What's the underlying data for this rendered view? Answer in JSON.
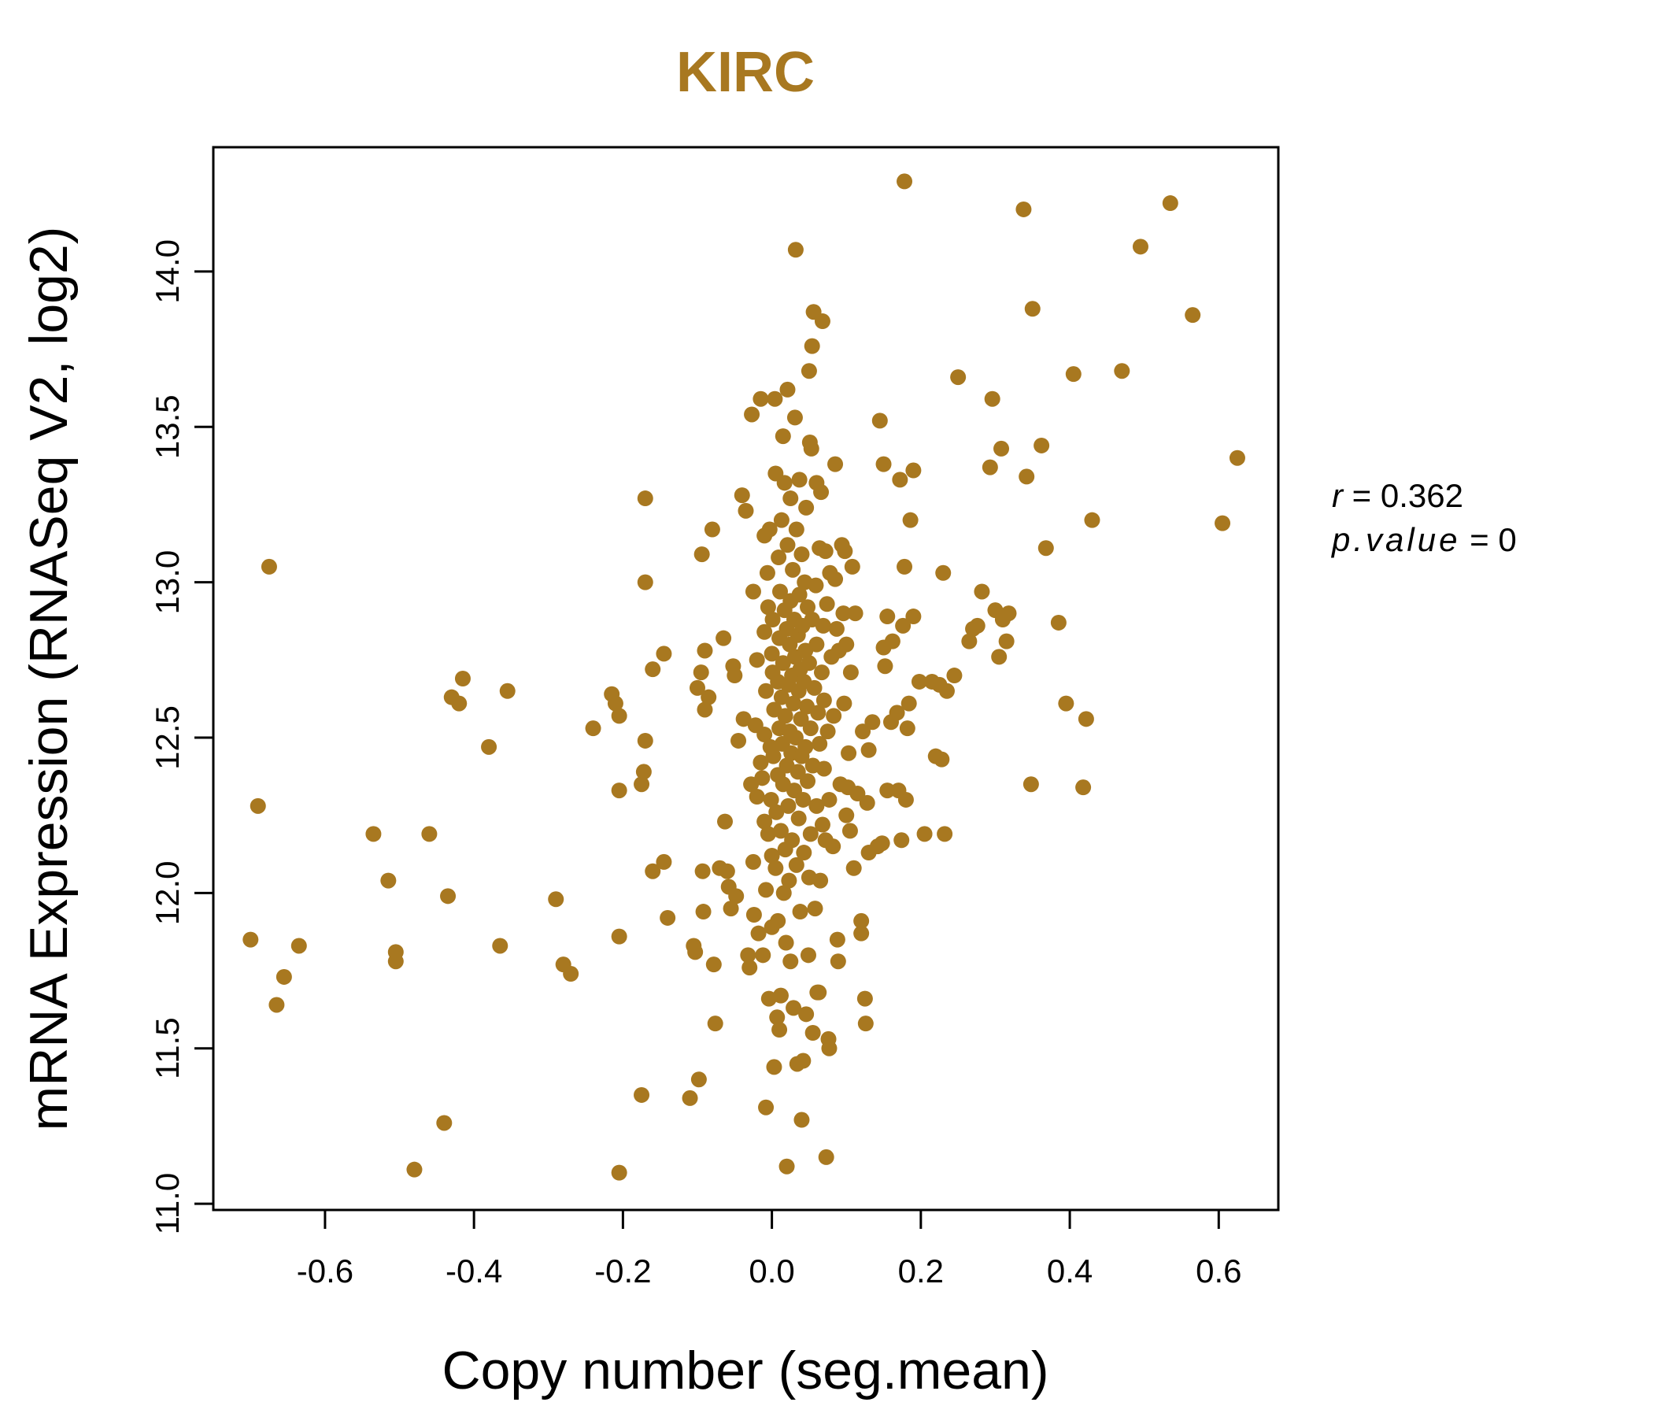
{
  "chart_data": {
    "type": "scatter",
    "title": "KIRC",
    "xlabel": "Copy number (seg.mean)",
    "ylabel": "mRNA Expression (RNASeq V2, log2)",
    "xlim": [
      -0.75,
      0.68
    ],
    "ylim": [
      10.98,
      14.4
    ],
    "x_ticks": [
      -0.6,
      -0.4,
      -0.2,
      0.0,
      0.2,
      0.4,
      0.6
    ],
    "x_tick_labels": [
      "-0.6",
      "-0.4",
      "-0.2",
      "0.0",
      "0.2",
      "0.4",
      "0.6"
    ],
    "y_ticks": [
      11.0,
      11.5,
      12.0,
      12.5,
      13.0,
      13.5,
      14.0
    ],
    "y_tick_labels": [
      "11.0",
      "11.5",
      "12.0",
      "12.5",
      "13.0",
      "13.5",
      "14.0"
    ],
    "color": "#A87820",
    "grid": false,
    "legend": "none",
    "annotations": {
      "r_label": "r",
      "r_value": "0.362",
      "p_label": "p.value",
      "p_value": "0"
    },
    "points": [
      [
        -0.7,
        11.85
      ],
      [
        -0.69,
        12.28
      ],
      [
        -0.675,
        13.05
      ],
      [
        -0.665,
        11.64
      ],
      [
        -0.655,
        11.73
      ],
      [
        -0.635,
        11.83
      ],
      [
        -0.535,
        12.19
      ],
      [
        -0.515,
        12.04
      ],
      [
        -0.505,
        11.81
      ],
      [
        -0.505,
        11.78
      ],
      [
        -0.48,
        11.11
      ],
      [
        -0.46,
        12.19
      ],
      [
        -0.44,
        11.26
      ],
      [
        -0.435,
        11.99
      ],
      [
        -0.43,
        12.63
      ],
      [
        -0.42,
        12.61
      ],
      [
        -0.415,
        12.69
      ],
      [
        -0.38,
        12.47
      ],
      [
        -0.365,
        11.83
      ],
      [
        -0.355,
        12.65
      ],
      [
        -0.29,
        11.98
      ],
      [
        -0.28,
        11.77
      ],
      [
        -0.27,
        11.74
      ],
      [
        -0.24,
        12.53
      ],
      [
        -0.215,
        12.64
      ],
      [
        -0.21,
        12.61
      ],
      [
        -0.205,
        12.57
      ],
      [
        -0.205,
        12.33
      ],
      [
        -0.205,
        11.86
      ],
      [
        -0.205,
        11.1
      ],
      [
        -0.175,
        11.35
      ],
      [
        -0.175,
        12.35
      ],
      [
        -0.172,
        12.39
      ],
      [
        -0.17,
        12.49
      ],
      [
        -0.17,
        13.0
      ],
      [
        -0.17,
        13.27
      ],
      [
        -0.16,
        12.72
      ],
      [
        -0.16,
        12.07
      ],
      [
        -0.145,
        12.77
      ],
      [
        -0.145,
        12.1
      ],
      [
        -0.14,
        11.92
      ],
      [
        -0.11,
        11.34
      ],
      [
        -0.105,
        11.83
      ],
      [
        -0.103,
        11.81
      ],
      [
        -0.1,
        12.66
      ],
      [
        -0.098,
        11.4
      ],
      [
        -0.095,
        12.71
      ],
      [
        -0.094,
        13.09
      ],
      [
        -0.093,
        12.07
      ],
      [
        -0.092,
        11.94
      ],
      [
        -0.09,
        12.78
      ],
      [
        -0.09,
        12.59
      ],
      [
        -0.085,
        12.63
      ],
      [
        -0.08,
        13.17
      ],
      [
        -0.078,
        11.77
      ],
      [
        -0.076,
        11.58
      ],
      [
        -0.07,
        12.08
      ],
      [
        -0.065,
        12.82
      ],
      [
        -0.063,
        12.23
      ],
      [
        -0.06,
        12.07
      ],
      [
        -0.058,
        12.02
      ],
      [
        -0.055,
        11.95
      ],
      [
        -0.052,
        12.73
      ],
      [
        -0.05,
        12.7
      ],
      [
        -0.048,
        11.99
      ],
      [
        -0.045,
        12.49
      ],
      [
        -0.04,
        13.28
      ],
      [
        -0.038,
        12.56
      ],
      [
        -0.035,
        13.23
      ],
      [
        -0.032,
        11.8
      ],
      [
        -0.03,
        11.76
      ],
      [
        -0.028,
        12.35
      ],
      [
        -0.027,
        13.54
      ],
      [
        -0.025,
        12.97
      ],
      [
        -0.025,
        12.1
      ],
      [
        -0.024,
        11.93
      ],
      [
        -0.022,
        12.54
      ],
      [
        -0.02,
        12.75
      ],
      [
        -0.02,
        12.31
      ],
      [
        -0.018,
        11.87
      ],
      [
        -0.015,
        13.59
      ],
      [
        -0.015,
        12.42
      ],
      [
        -0.013,
        12.37
      ],
      [
        -0.012,
        11.8
      ],
      [
        -0.01,
        13.15
      ],
      [
        -0.01,
        12.84
      ],
      [
        -0.01,
        12.51
      ],
      [
        -0.01,
        12.23
      ],
      [
        -0.008,
        12.65
      ],
      [
        -0.008,
        12.01
      ],
      [
        -0.008,
        11.31
      ],
      [
        -0.006,
        13.03
      ],
      [
        -0.005,
        12.92
      ],
      [
        -0.005,
        12.19
      ],
      [
        -0.004,
        11.66
      ],
      [
        -0.003,
        13.17
      ],
      [
        -0.002,
        12.47
      ],
      [
        -0.001,
        12.3
      ],
      [
        0.0,
        12.77
      ],
      [
        0.0,
        12.12
      ],
      [
        0.0,
        11.89
      ],
      [
        0.001,
        12.71
      ],
      [
        0.001,
        12.88
      ],
      [
        0.002,
        12.44
      ],
      [
        0.003,
        12.59
      ],
      [
        0.003,
        11.44
      ],
      [
        0.004,
        13.59
      ],
      [
        0.005,
        13.35
      ],
      [
        0.005,
        12.08
      ],
      [
        0.006,
        12.26
      ],
      [
        0.007,
        11.6
      ],
      [
        0.008,
        12.68
      ],
      [
        0.008,
        12.38
      ],
      [
        0.008,
        11.91
      ],
      [
        0.009,
        13.08
      ],
      [
        0.01,
        12.82
      ],
      [
        0.01,
        12.53
      ],
      [
        0.01,
        11.56
      ],
      [
        0.011,
        12.97
      ],
      [
        0.012,
        12.2
      ],
      [
        0.012,
        11.67
      ],
      [
        0.013,
        13.2
      ],
      [
        0.013,
        12.63
      ],
      [
        0.014,
        12.48
      ],
      [
        0.015,
        13.47
      ],
      [
        0.015,
        12.74
      ],
      [
        0.015,
        12.35
      ],
      [
        0.016,
        12.0
      ],
      [
        0.017,
        13.32
      ],
      [
        0.017,
        12.91
      ],
      [
        0.018,
        12.57
      ],
      [
        0.018,
        12.14
      ],
      [
        0.019,
        11.84
      ],
      [
        0.02,
        12.85
      ],
      [
        0.02,
        12.41
      ],
      [
        0.02,
        11.12
      ],
      [
        0.021,
        13.62
      ],
      [
        0.021,
        13.12
      ],
      [
        0.022,
        12.67
      ],
      [
        0.022,
        12.28
      ],
      [
        0.023,
        12.04
      ],
      [
        0.024,
        12.8
      ],
      [
        0.024,
        12.52
      ],
      [
        0.025,
        13.27
      ],
      [
        0.025,
        12.94
      ],
      [
        0.025,
        11.78
      ],
      [
        0.026,
        12.45
      ],
      [
        0.027,
        12.7
      ],
      [
        0.027,
        12.17
      ],
      [
        0.028,
        13.04
      ],
      [
        0.029,
        12.61
      ],
      [
        0.029,
        11.63
      ],
      [
        0.03,
        12.88
      ],
      [
        0.03,
        12.33
      ],
      [
        0.031,
        13.53
      ],
      [
        0.031,
        12.76
      ],
      [
        0.032,
        14.07
      ],
      [
        0.032,
        12.5
      ],
      [
        0.033,
        13.17
      ],
      [
        0.033,
        12.09
      ],
      [
        0.034,
        11.45
      ],
      [
        0.035,
        12.83
      ],
      [
        0.035,
        12.39
      ],
      [
        0.036,
        12.65
      ],
      [
        0.036,
        12.24
      ],
      [
        0.037,
        13.33
      ],
      [
        0.037,
        12.96
      ],
      [
        0.038,
        12.72
      ],
      [
        0.038,
        11.94
      ],
      [
        0.039,
        12.56
      ],
      [
        0.04,
        13.09
      ],
      [
        0.04,
        12.44
      ],
      [
        0.04,
        11.27
      ],
      [
        0.041,
        12.86
      ],
      [
        0.042,
        12.3
      ],
      [
        0.042,
        11.46
      ],
      [
        0.043,
        12.68
      ],
      [
        0.043,
        12.13
      ],
      [
        0.044,
        13.0
      ],
      [
        0.045,
        12.78
      ],
      [
        0.045,
        12.47
      ],
      [
        0.046,
        13.24
      ],
      [
        0.046,
        11.61
      ],
      [
        0.047,
        12.6
      ],
      [
        0.048,
        12.92
      ],
      [
        0.048,
        12.36
      ],
      [
        0.049,
        11.8
      ],
      [
        0.05,
        13.68
      ],
      [
        0.05,
        12.74
      ],
      [
        0.05,
        12.05
      ],
      [
        0.051,
        13.45
      ],
      [
        0.052,
        12.53
      ],
      [
        0.052,
        12.19
      ],
      [
        0.053,
        13.43
      ],
      [
        0.054,
        13.76
      ],
      [
        0.054,
        12.88
      ],
      [
        0.055,
        12.41
      ],
      [
        0.055,
        11.55
      ],
      [
        0.056,
        13.87
      ],
      [
        0.057,
        12.66
      ],
      [
        0.058,
        11.95
      ],
      [
        0.059,
        12.99
      ],
      [
        0.06,
        13.32
      ],
      [
        0.06,
        12.8
      ],
      [
        0.06,
        12.28
      ],
      [
        0.061,
        11.68
      ],
      [
        0.062,
        12.58
      ],
      [
        0.063,
        11.68
      ],
      [
        0.064,
        13.11
      ],
      [
        0.064,
        12.48
      ],
      [
        0.065,
        12.04
      ],
      [
        0.066,
        13.29
      ],
      [
        0.067,
        12.71
      ],
      [
        0.068,
        13.84
      ],
      [
        0.068,
        12.22
      ],
      [
        0.069,
        12.86
      ],
      [
        0.07,
        12.62
      ],
      [
        0.07,
        12.4
      ],
      [
        0.072,
        13.1
      ],
      [
        0.072,
        12.17
      ],
      [
        0.073,
        11.15
      ],
      [
        0.074,
        12.93
      ],
      [
        0.075,
        12.52
      ],
      [
        0.076,
        11.53
      ],
      [
        0.077,
        12.3
      ],
      [
        0.077,
        11.5
      ],
      [
        0.078,
        13.03
      ],
      [
        0.08,
        12.76
      ],
      [
        0.082,
        12.15
      ],
      [
        0.083,
        12.57
      ],
      [
        0.085,
        13.38
      ],
      [
        0.085,
        13.01
      ],
      [
        0.087,
        12.85
      ],
      [
        0.088,
        11.85
      ],
      [
        0.089,
        11.78
      ],
      [
        0.09,
        12.78
      ],
      [
        0.092,
        12.35
      ],
      [
        0.094,
        13.12
      ],
      [
        0.096,
        12.9
      ],
      [
        0.097,
        12.61
      ],
      [
        0.098,
        13.1
      ],
      [
        0.1,
        12.8
      ],
      [
        0.1,
        12.25
      ],
      [
        0.102,
        12.34
      ],
      [
        0.103,
        12.45
      ],
      [
        0.105,
        12.2
      ],
      [
        0.106,
        12.71
      ],
      [
        0.108,
        13.05
      ],
      [
        0.11,
        12.08
      ],
      [
        0.112,
        12.9
      ],
      [
        0.115,
        12.32
      ],
      [
        0.12,
        11.91
      ],
      [
        0.12,
        11.87
      ],
      [
        0.122,
        12.52
      ],
      [
        0.125,
        11.66
      ],
      [
        0.126,
        11.58
      ],
      [
        0.128,
        12.29
      ],
      [
        0.13,
        12.46
      ],
      [
        0.13,
        12.13
      ],
      [
        0.135,
        12.55
      ],
      [
        0.142,
        12.15
      ],
      [
        0.145,
        13.52
      ],
      [
        0.148,
        12.16
      ],
      [
        0.15,
        13.38
      ],
      [
        0.15,
        12.79
      ],
      [
        0.152,
        12.73
      ],
      [
        0.155,
        12.89
      ],
      [
        0.155,
        12.33
      ],
      [
        0.16,
        12.55
      ],
      [
        0.162,
        12.81
      ],
      [
        0.168,
        12.58
      ],
      [
        0.17,
        12.33
      ],
      [
        0.172,
        13.33
      ],
      [
        0.174,
        12.17
      ],
      [
        0.176,
        12.86
      ],
      [
        0.178,
        13.05
      ],
      [
        0.178,
        14.29
      ],
      [
        0.18,
        12.3
      ],
      [
        0.182,
        12.53
      ],
      [
        0.184,
        12.61
      ],
      [
        0.186,
        13.2
      ],
      [
        0.19,
        12.89
      ],
      [
        0.19,
        13.36
      ],
      [
        0.198,
        12.68
      ],
      [
        0.205,
        12.19
      ],
      [
        0.215,
        12.68
      ],
      [
        0.22,
        12.44
      ],
      [
        0.225,
        12.67
      ],
      [
        0.228,
        12.43
      ],
      [
        0.23,
        13.03
      ],
      [
        0.232,
        12.19
      ],
      [
        0.235,
        12.65
      ],
      [
        0.245,
        12.7
      ],
      [
        0.25,
        13.66
      ],
      [
        0.265,
        12.81
      ],
      [
        0.27,
        12.85
      ],
      [
        0.276,
        12.86
      ],
      [
        0.282,
        12.97
      ],
      [
        0.293,
        13.37
      ],
      [
        0.296,
        13.59
      ],
      [
        0.3,
        12.91
      ],
      [
        0.305,
        12.76
      ],
      [
        0.308,
        13.43
      ],
      [
        0.31,
        12.88
      ],
      [
        0.315,
        12.81
      ],
      [
        0.318,
        12.9
      ],
      [
        0.338,
        14.2
      ],
      [
        0.342,
        13.34
      ],
      [
        0.348,
        12.35
      ],
      [
        0.35,
        13.88
      ],
      [
        0.362,
        13.44
      ],
      [
        0.368,
        13.11
      ],
      [
        0.385,
        12.87
      ],
      [
        0.395,
        12.61
      ],
      [
        0.405,
        13.67
      ],
      [
        0.418,
        12.34
      ],
      [
        0.422,
        12.56
      ],
      [
        0.43,
        13.2
      ],
      [
        0.47,
        13.68
      ],
      [
        0.495,
        14.08
      ],
      [
        0.535,
        14.22
      ],
      [
        0.565,
        13.86
      ],
      [
        0.605,
        13.19
      ],
      [
        0.625,
        13.4
      ]
    ]
  }
}
